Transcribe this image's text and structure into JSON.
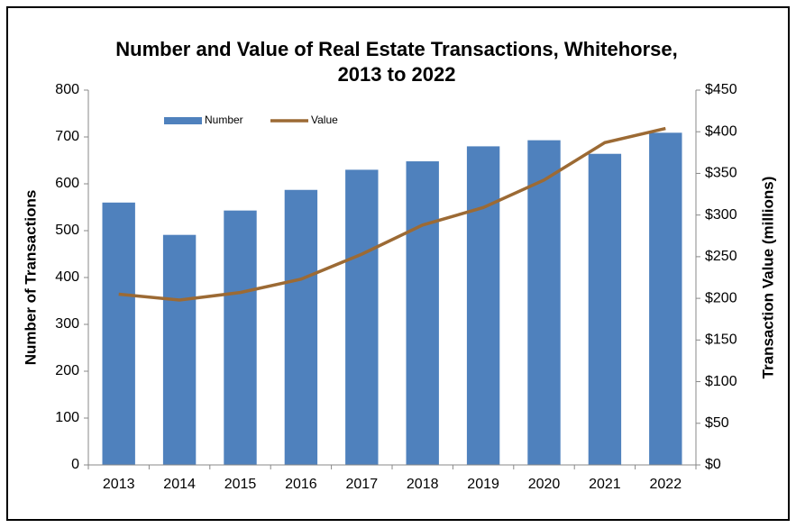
{
  "chart_data": {
    "type": "bar_line",
    "title": [
      "Number and Value of Real Estate Transactions, Whitehorse,",
      "2013 to 2022"
    ],
    "y_label": "Number of Transactions",
    "y2_label": "Transaction Value (millions)",
    "categories": [
      "2013",
      "2014",
      "2015",
      "2016",
      "2017",
      "2018",
      "2019",
      "2020",
      "2021",
      "2022"
    ],
    "series": [
      {
        "name": "Number",
        "type": "bar",
        "color": "#4f81bd",
        "values": [
          560,
          491,
          543,
          587,
          630,
          648,
          680,
          693,
          664,
          709
        ]
      },
      {
        "name": "Value",
        "type": "line",
        "axis": "y2",
        "color": "#9c6a34",
        "values": [
          205,
          198,
          207,
          223,
          253,
          288,
          309,
          342,
          387,
          404
        ]
      }
    ],
    "ylim": [
      0,
      800
    ],
    "yticks": [
      0,
      100,
      200,
      300,
      400,
      500,
      600,
      700,
      800
    ],
    "y2lim": [
      0,
      450
    ],
    "y2ticks": [
      {
        "value": 0,
        "label": "$0"
      },
      {
        "value": 50,
        "label": "$50"
      },
      {
        "value": 100,
        "label": "$100"
      },
      {
        "value": 150,
        "label": "$150"
      },
      {
        "value": 200,
        "label": "$200"
      },
      {
        "value": 250,
        "label": "$250"
      },
      {
        "value": 300,
        "label": "$300"
      },
      {
        "value": 350,
        "label": "$350"
      },
      {
        "value": 400,
        "label": "$400"
      },
      {
        "value": 450,
        "label": "$450"
      }
    ],
    "legend": "top",
    "grid": false
  }
}
